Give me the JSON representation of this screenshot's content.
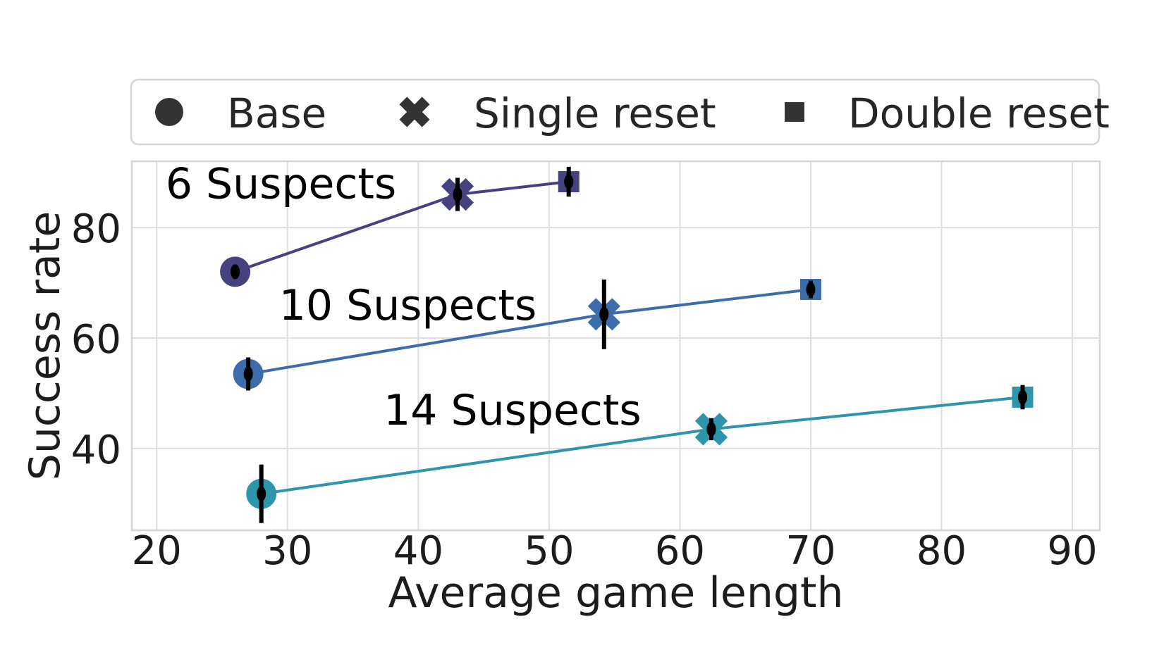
{
  "figure": {
    "background_color": "#ffffff",
    "tick_text_color": "#1c1c1c",
    "annotation_text_color": "#000000",
    "grid_color": "#dedede",
    "frame_color": "#d4d4d4",
    "errorbar_color": "#000000",
    "legend": {
      "marker_color": "#333333",
      "border_color": "#d5d5d5",
      "items": [
        {
          "label": "Base",
          "marker": "circle"
        },
        {
          "label": "Single reset",
          "marker": "x"
        },
        {
          "label": "Double reset",
          "marker": "square"
        }
      ]
    }
  },
  "chart_data": {
    "type": "scatter",
    "title": "",
    "xlabel": "Average game length",
    "ylabel": "Success rate",
    "xlim": [
      18.1,
      92.1
    ],
    "ylim": [
      25.2,
      92.0
    ],
    "xticks": [
      20,
      30,
      40,
      50,
      60,
      70,
      80,
      90
    ],
    "yticks": [
      40,
      60,
      80
    ],
    "grid": true,
    "legend_position": "top",
    "marker_variants": [
      "Base",
      "Single reset",
      "Double reset"
    ],
    "series": [
      {
        "name": "6 Suspects",
        "color": "#46417f",
        "points": [
          {
            "variant": "Base",
            "marker": "circle",
            "x": 26.0,
            "y": 72.0,
            "yerr": 1.3
          },
          {
            "variant": "Single reset",
            "marker": "x",
            "x": 43.0,
            "y": 86.0,
            "yerr": 3.0
          },
          {
            "variant": "Double reset",
            "marker": "square",
            "x": 51.5,
            "y": 88.3,
            "yerr": 2.7
          }
        ],
        "annotation": {
          "text": "6 Suspects",
          "x": 29.5,
          "y": 88.0
        }
      },
      {
        "name": "10 Suspects",
        "color": "#3d6cab",
        "points": [
          {
            "variant": "Base",
            "marker": "circle",
            "x": 27.0,
            "y": 53.5,
            "yerr": 3.0
          },
          {
            "variant": "Single reset",
            "marker": "x",
            "x": 54.2,
            "y": 64.3,
            "yerr": 6.3
          },
          {
            "variant": "Double reset",
            "marker": "square",
            "x": 70.0,
            "y": 68.8,
            "yerr": 1.6
          }
        ],
        "annotation": {
          "text": "10 Suspects",
          "x": 39.2,
          "y": 66.0
        }
      },
      {
        "name": "14 Suspects",
        "color": "#2e95aa",
        "points": [
          {
            "variant": "Base",
            "marker": "circle",
            "x": 28.0,
            "y": 31.8,
            "yerr": 5.3
          },
          {
            "variant": "Single reset",
            "marker": "x",
            "x": 62.4,
            "y": 43.5,
            "yerr": 2.0
          },
          {
            "variant": "Double reset",
            "marker": "square",
            "x": 86.2,
            "y": 49.3,
            "yerr": 2.2
          }
        ],
        "annotation": {
          "text": "14 Suspects",
          "x": 47.2,
          "y": 47.0
        }
      }
    ]
  }
}
